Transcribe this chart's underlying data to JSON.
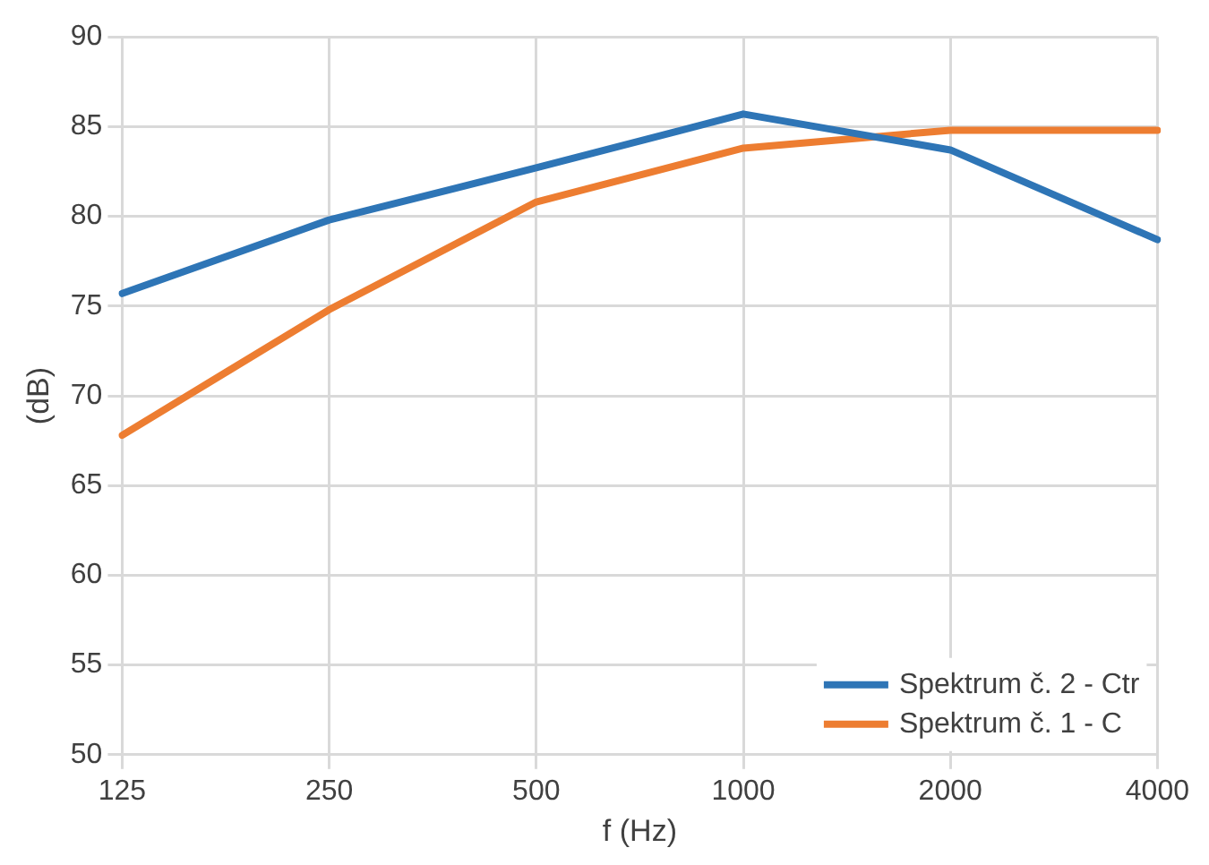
{
  "chart_data": {
    "type": "line",
    "xlabel": "f (Hz)",
    "ylabel": "(dB)",
    "categories": [
      "125",
      "250",
      "500",
      "1000",
      "2000",
      "4000"
    ],
    "series": [
      {
        "name": "Spektrum č. 2 - Ctr",
        "color": "#2e75b6",
        "values": [
          75.7,
          79.8,
          82.7,
          85.7,
          83.7,
          78.7
        ]
      },
      {
        "name": "Spektrum č. 1 - C",
        "color": "#ed7d31",
        "values": [
          67.8,
          74.8,
          80.8,
          83.8,
          84.8,
          84.8
        ]
      }
    ],
    "ylim": [
      50,
      90
    ],
    "yticks": [
      50,
      55,
      60,
      65,
      70,
      75,
      80,
      85,
      90
    ],
    "grid": true,
    "legend": "bottom right",
    "marker": "none",
    "line_style": "solid"
  }
}
